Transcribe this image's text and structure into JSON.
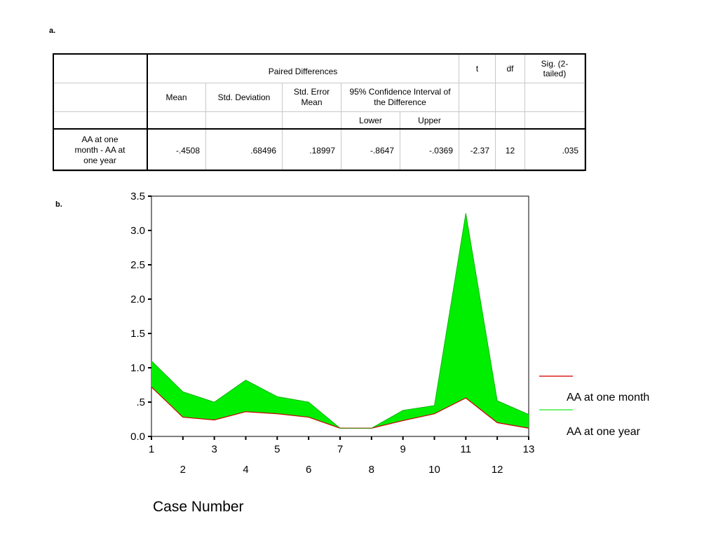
{
  "panel_a_label": "a.",
  "panel_b_label": "b.",
  "table": {
    "header_paired": "Paired Differences",
    "header_t": "t",
    "header_df": "df",
    "header_sig": "Sig. (2-tailed)",
    "col_mean": "Mean",
    "col_sd": "Std. Deviation",
    "col_se": "Std. Error Mean",
    "col_ci": "95% Confidence Interval of the Difference",
    "col_lower": "Lower",
    "col_upper": "Upper",
    "row_label": "AA at one month - AA at one year",
    "row": {
      "mean": "-.4508",
      "sd": ".68496",
      "se": ".18997",
      "lower": "-.8647",
      "upper": "-.0369",
      "t": "-2.37",
      "df": "12",
      "sig": ".035"
    }
  },
  "chart_data": {
    "type": "area",
    "xlabel": "Case Number",
    "ylabel": "",
    "x": [
      1,
      2,
      3,
      4,
      5,
      6,
      7,
      8,
      9,
      10,
      11,
      12,
      13
    ],
    "xticks_top": [
      "1",
      "3",
      "5",
      "7",
      "9",
      "11",
      "13"
    ],
    "xticks_bottom": [
      "2",
      "4",
      "6",
      "8",
      "10",
      "12"
    ],
    "yticks": [
      "0.0",
      ".5",
      "1.0",
      "1.5",
      "2.0",
      "2.5",
      "3.0",
      "3.5"
    ],
    "ylim": [
      0,
      3.5
    ],
    "grid": false,
    "legend_position": "right",
    "series": [
      {
        "name": "AA at one month",
        "color": "#cc0000",
        "values": [
          0.72,
          0.28,
          0.24,
          0.36,
          0.33,
          0.28,
          0.12,
          0.12,
          0.23,
          0.33,
          0.56,
          0.2,
          0.12
        ]
      },
      {
        "name": "AA at one year",
        "color": "#00ee00",
        "values": [
          1.1,
          0.65,
          0.5,
          0.82,
          0.58,
          0.5,
          0.12,
          0.12,
          0.38,
          0.45,
          3.25,
          0.52,
          0.32
        ]
      }
    ],
    "fill_color": "#00ee00"
  }
}
